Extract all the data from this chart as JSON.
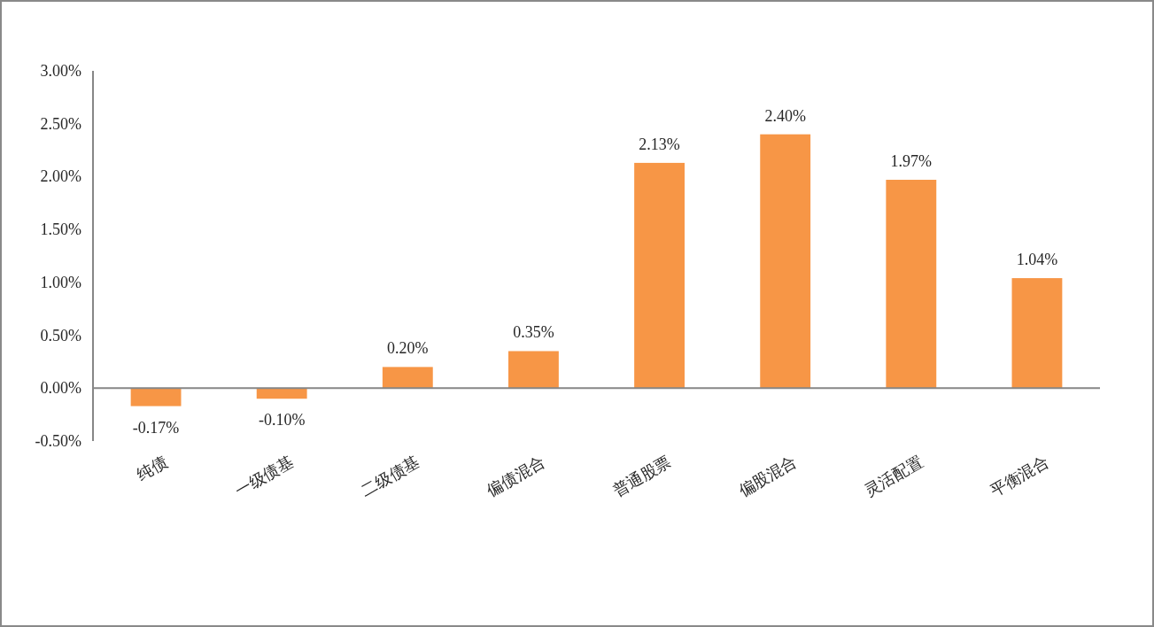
{
  "chart_data": {
    "type": "bar",
    "categories": [
      "纯债",
      "一级债基",
      "二级债基",
      "偏债混合",
      "普通股票",
      "偏股混合",
      "灵活配置",
      "平衡混合"
    ],
    "values": [
      -0.17,
      -0.1,
      0.2,
      0.35,
      2.13,
      2.4,
      1.97,
      1.04
    ],
    "value_labels": [
      "-0.17%",
      "-0.10%",
      "0.20%",
      "0.35%",
      "2.13%",
      "2.40%",
      "1.97%",
      "1.04%"
    ],
    "color": "#f79646",
    "ylim": [
      -0.5,
      3
    ],
    "yticks": [
      {
        "value": -0.5,
        "label": "-0.50%"
      },
      {
        "value": 0,
        "label": "0.00%"
      },
      {
        "value": 0.5,
        "label": "0.50%"
      },
      {
        "value": 1,
        "label": "1.00%"
      },
      {
        "value": 1.5,
        "label": "1.50%"
      },
      {
        "value": 2,
        "label": "2.00%"
      },
      {
        "value": 2.5,
        "label": "2.50%"
      },
      {
        "value": 3,
        "label": "3.00%"
      }
    ]
  }
}
